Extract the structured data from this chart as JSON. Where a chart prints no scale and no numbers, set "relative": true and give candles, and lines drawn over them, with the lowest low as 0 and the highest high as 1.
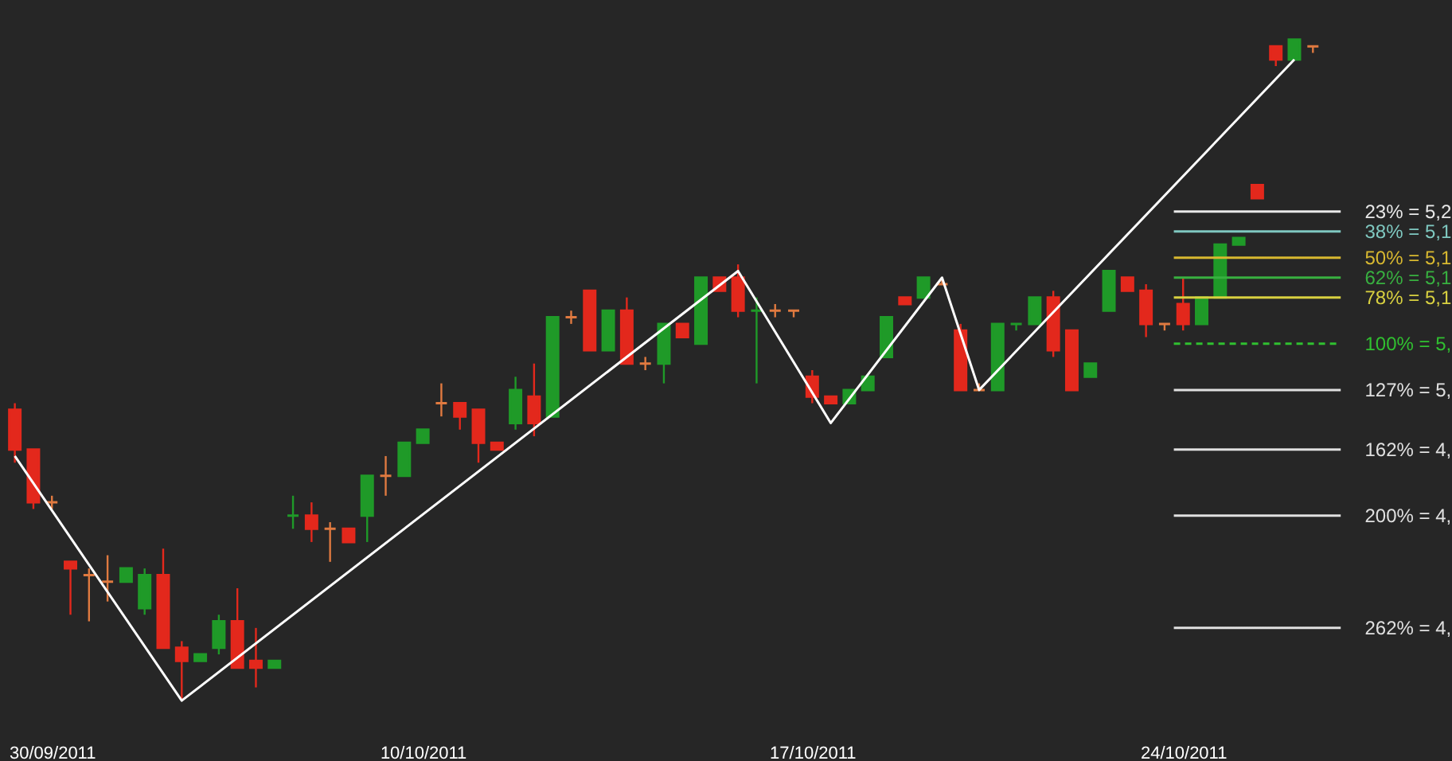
{
  "chart_data": {
    "type": "candlestick",
    "relative": true,
    "categories": [
      null,
      null,
      "30/09/2011",
      null,
      null,
      null,
      null,
      null,
      null,
      null,
      null,
      null,
      null,
      null,
      null,
      null,
      null,
      null,
      null,
      null,
      null,
      null,
      "10/10/2011",
      null,
      null,
      null,
      null,
      null,
      null,
      null,
      null,
      null,
      null,
      null,
      null,
      null,
      null,
      null,
      null,
      null,
      null,
      null,
      null,
      "17/10/2011",
      null,
      null,
      null,
      null,
      null,
      null,
      null,
      null,
      null,
      null,
      null,
      null,
      null,
      null,
      null,
      null,
      null,
      null,
      null,
      "24/10/2011",
      null,
      null,
      null,
      null,
      null,
      null,
      null
    ],
    "ohlc": [
      [
        0.44,
        0.45,
        0.36,
        0.38
      ],
      [
        0.38,
        0.38,
        0.29,
        0.3
      ],
      [
        0.3,
        0.31,
        0.29,
        0.3
      ],
      [
        0.21,
        0.21,
        0.13,
        0.2
      ],
      [
        0.19,
        0.2,
        0.12,
        0.19
      ],
      [
        0.18,
        0.22,
        0.15,
        0.18
      ],
      [
        0.18,
        0.2,
        0.18,
        0.2
      ],
      [
        0.14,
        0.2,
        0.13,
        0.19
      ],
      [
        0.19,
        0.23,
        0.08,
        0.08
      ],
      [
        0.08,
        0.09,
        0.0,
        0.06
      ],
      [
        0.06,
        0.07,
        0.06,
        0.07
      ],
      [
        0.08,
        0.13,
        0.07,
        0.12
      ],
      [
        0.12,
        0.17,
        0.05,
        0.05
      ],
      [
        0.06,
        0.11,
        0.02,
        0.05
      ],
      [
        0.05,
        0.06,
        0.05,
        0.06
      ],
      [
        0.28,
        0.31,
        0.26,
        0.28
      ],
      [
        0.28,
        0.3,
        0.24,
        0.26
      ],
      [
        0.26,
        0.27,
        0.21,
        0.26
      ],
      [
        0.26,
        0.26,
        0.24,
        0.24
      ],
      [
        0.28,
        0.34,
        0.24,
        0.34
      ],
      [
        0.34,
        0.37,
        0.31,
        0.34
      ],
      [
        0.34,
        0.39,
        0.34,
        0.39
      ],
      [
        0.39,
        0.41,
        0.39,
        0.41
      ],
      [
        0.45,
        0.48,
        0.43,
        0.45
      ],
      [
        0.45,
        0.45,
        0.41,
        0.43
      ],
      [
        0.44,
        0.44,
        0.36,
        0.39
      ],
      [
        0.39,
        0.39,
        0.38,
        0.38
      ],
      [
        0.42,
        0.49,
        0.41,
        0.47
      ],
      [
        0.46,
        0.51,
        0.4,
        0.42
      ],
      [
        0.43,
        0.58,
        0.43,
        0.58
      ],
      [
        0.58,
        0.59,
        0.57,
        0.58
      ],
      [
        0.62,
        0.62,
        0.53,
        0.53
      ],
      [
        0.53,
        0.59,
        0.53,
        0.59
      ],
      [
        0.59,
        0.61,
        0.51,
        0.51
      ],
      [
        0.51,
        0.52,
        0.5,
        0.51
      ],
      [
        0.51,
        0.57,
        0.48,
        0.57
      ],
      [
        0.57,
        0.57,
        0.55,
        0.55
      ],
      [
        0.54,
        0.64,
        0.54,
        0.64
      ],
      [
        0.64,
        0.64,
        0.62,
        0.62
      ],
      [
        0.64,
        0.66,
        0.58,
        0.59
      ],
      [
        0.59,
        0.61,
        0.48,
        0.59
      ],
      [
        0.59,
        0.6,
        0.58,
        0.59
      ],
      [
        0.59,
        0.59,
        0.58,
        0.59
      ],
      [
        0.49,
        0.5,
        0.45,
        0.46
      ],
      [
        0.46,
        0.46,
        0.45,
        0.45
      ],
      [
        0.45,
        0.47,
        0.45,
        0.47
      ],
      [
        0.47,
        0.49,
        0.47,
        0.49
      ],
      [
        0.52,
        0.58,
        0.52,
        0.58
      ],
      [
        0.61,
        0.61,
        0.6,
        0.6
      ],
      [
        0.61,
        0.64,
        0.61,
        0.64
      ],
      [
        0.63,
        0.64,
        0.63,
        0.63
      ],
      [
        0.56,
        0.57,
        0.47,
        0.47
      ],
      [
        0.47,
        0.48,
        0.47,
        0.47
      ],
      [
        0.47,
        0.57,
        0.47,
        0.57
      ],
      [
        0.57,
        0.57,
        0.56,
        0.57
      ],
      [
        0.57,
        0.61,
        0.57,
        0.61
      ],
      [
        0.61,
        0.62,
        0.52,
        0.53
      ],
      [
        0.56,
        0.56,
        0.47,
        0.47
      ],
      [
        0.49,
        0.51,
        0.49,
        0.51
      ],
      [
        0.59,
        0.65,
        0.59,
        0.65
      ],
      [
        0.64,
        0.64,
        0.62,
        0.62
      ],
      [
        0.62,
        0.63,
        0.55,
        0.57
      ],
      [
        0.57,
        0.57,
        0.56,
        0.57
      ],
      [
        0.6,
        0.64,
        0.56,
        0.57
      ],
      [
        0.57,
        0.61,
        0.57,
        0.61
      ],
      [
        0.61,
        0.69,
        0.61,
        0.69
      ],
      [
        0.69,
        0.7,
        0.69,
        0.7
      ],
      [
        0.78,
        0.78,
        0.76,
        0.76
      ],
      [
        0.99,
        0.99,
        0.96,
        0.97
      ],
      [
        0.97,
        1.0,
        0.97,
        1.0
      ],
      [
        0.99,
        0.99,
        0.98,
        0.99
      ]
    ],
    "colors": [
      "#e3281c",
      "#e3281c",
      "#e07a40",
      "#e3281c",
      "#e07a40",
      "#e07a40",
      "#1f9a28",
      "#1f9a28",
      "#e3281c",
      "#e3281c",
      "#1f9a28",
      "#1f9a28",
      "#e3281c",
      "#e3281c",
      "#1f9a28",
      "#1f9a28",
      "#e3281c",
      "#e07a40",
      "#e3281c",
      "#1f9a28",
      "#e07a40",
      "#1f9a28",
      "#1f9a28",
      "#e07a40",
      "#e3281c",
      "#e3281c",
      "#e3281c",
      "#1f9a28",
      "#e3281c",
      "#1f9a28",
      "#e07a40",
      "#e3281c",
      "#1f9a28",
      "#e3281c",
      "#e07a40",
      "#1f9a28",
      "#e3281c",
      "#1f9a28",
      "#e3281c",
      "#e3281c",
      "#1f9a28",
      "#e07a40",
      "#e07a40",
      "#e3281c",
      "#e3281c",
      "#1f9a28",
      "#1f9a28",
      "#1f9a28",
      "#e3281c",
      "#1f9a28",
      "#e07a40",
      "#e3281c",
      "#e07a40",
      "#1f9a28",
      "#1f9a28",
      "#1f9a28",
      "#e3281c",
      "#e3281c",
      "#1f9a28",
      "#1f9a28",
      "#e3281c",
      "#e3281c",
      "#e07a40",
      "#e3281c",
      "#1f9a28",
      "#1f9a28",
      "#1f9a28",
      "#e3281c",
      "#e3281c",
      "#1f9a28",
      "#e07a40"
    ],
    "annotations": [
      "23% = 5,2",
      "38% = 5,1",
      "50% = 5,1",
      "62% = 5,1",
      "78% = 5,1",
      "100% = 5,",
      "127% = 5,",
      "162% = 4,",
      "200% = 4,",
      "262% = 4,"
    ],
    "series": [
      {
        "type": "line",
        "color": "#ffffff",
        "values": [
          0.37,
          null,
          null,
          null,
          null,
          null,
          null,
          null,
          null,
          0.0,
          null,
          null,
          null,
          null,
          null,
          null,
          null,
          null,
          null,
          null,
          null,
          null,
          null,
          null,
          null,
          null,
          null,
          null,
          null,
          null,
          null,
          null,
          null,
          null,
          null,
          null,
          null,
          null,
          null,
          0.65,
          null,
          null,
          null,
          null,
          0.42,
          null,
          null,
          null,
          null,
          null,
          0.64,
          null,
          0.47,
          null,
          null,
          null,
          null,
          null,
          null,
          null,
          null,
          null,
          null,
          null,
          null,
          null,
          null,
          null,
          null,
          0.97,
          null
        ]
      }
    ],
    "ref_lines": [
      {
        "axis": "y",
        "value": 0.74,
        "color": "#e8e8e8"
      },
      {
        "axis": "y",
        "value": 0.71,
        "color": "#7fc8c0"
      },
      {
        "axis": "y",
        "value": 0.67,
        "color": "#d8b830"
      },
      {
        "axis": "y",
        "value": 0.64,
        "color": "#38b040"
      },
      {
        "axis": "y",
        "value": 0.61,
        "color": "#d8d040"
      },
      {
        "axis": "y",
        "value": 0.54,
        "color": "#30c030",
        "line_style": "dashed"
      },
      {
        "axis": "y",
        "value": 0.47,
        "color": "#e0e0e0"
      },
      {
        "axis": "y",
        "value": 0.38,
        "color": "#e0e0e0"
      },
      {
        "axis": "y",
        "value": 0.28,
        "color": "#e0e0e0"
      },
      {
        "axis": "y",
        "value": 0.11,
        "color": "#e0e0e0"
      }
    ]
  }
}
